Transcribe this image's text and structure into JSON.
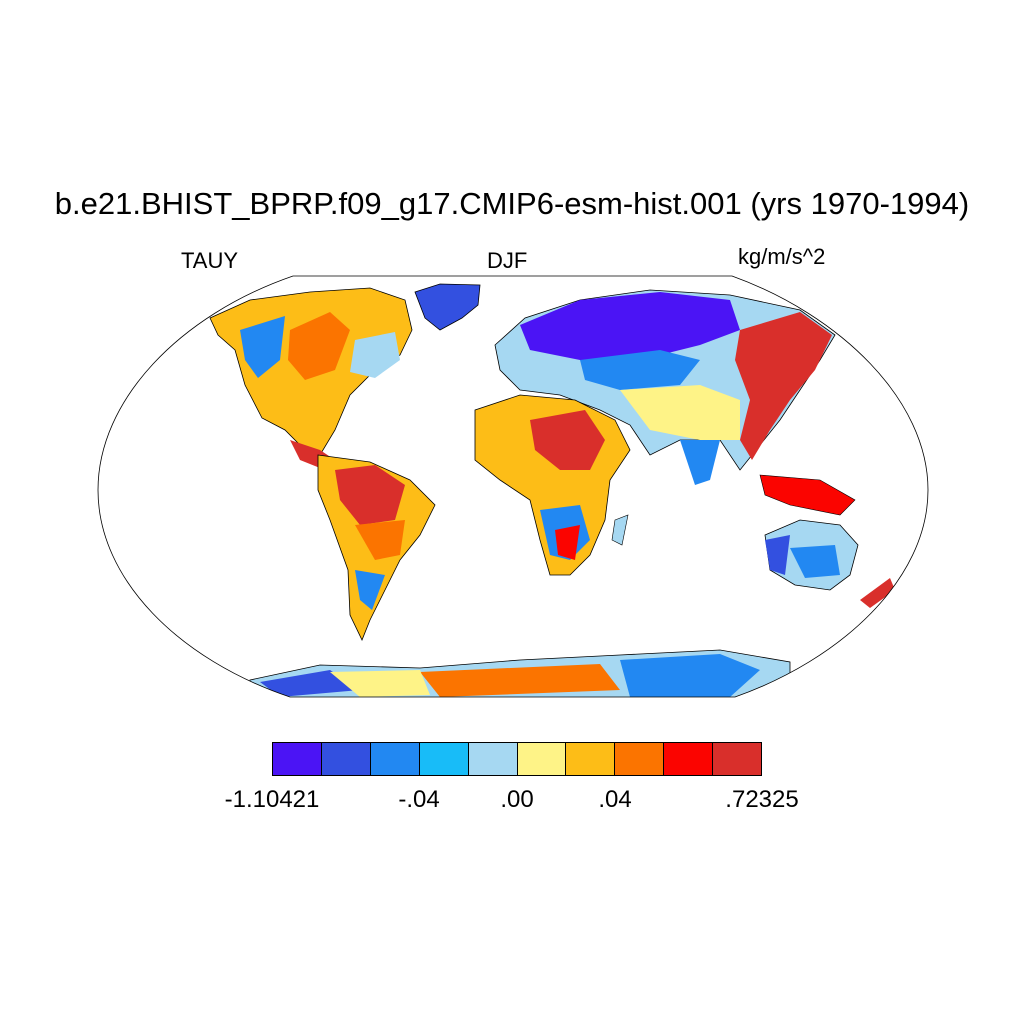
{
  "title": "b.e21.BHIST_BPRP.f09_g17.CMIP6-esm-hist.001 (yrs 1970-1994)",
  "variable": "TAUY",
  "season": "DJF",
  "units": "kg/m/s^2",
  "colorbar": {
    "colors": [
      "#4b14f5",
      "#3350e0",
      "#2288f2",
      "#18bcf8",
      "#a6d8f2",
      "#fef387",
      "#fdbd17",
      "#fb7400",
      "#fb0400",
      "#d92f2b"
    ],
    "tick_labels": [
      "-1.10421",
      "-.04",
      ".00",
      ".04",
      ".72325"
    ]
  }
}
